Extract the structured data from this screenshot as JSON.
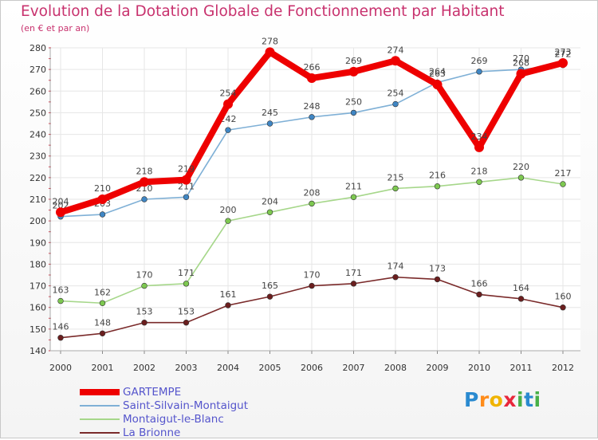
{
  "title": "Evolution de la Dotation Globale de Fonctionnement par Habitant",
  "subtitle": "(en € et par an)",
  "logo": {
    "letters": [
      "P",
      "r",
      "o",
      "x",
      "i",
      "t",
      "i"
    ],
    "colors": [
      "#2a8ad0",
      "#ff8c1a",
      "#f0b400",
      "#e8283c",
      "#48b048",
      "#2a8ad0",
      "#48b048"
    ]
  },
  "chart_data": {
    "type": "line",
    "title": "Evolution de la Dotation Globale de Fonctionnement par Habitant",
    "subtitle": "(en € et par an)",
    "x": [
      "2000",
      "2001",
      "2002",
      "2003",
      "2004",
      "2005",
      "2006",
      "2007",
      "2008",
      "2009",
      "2010",
      "2011",
      "2012"
    ],
    "ylim": [
      140,
      280
    ],
    "yticks": [
      "140",
      "150",
      "160",
      "170",
      "180",
      "190",
      "200",
      "210",
      "220",
      "230",
      "240",
      "250",
      "260",
      "270",
      "280"
    ],
    "grid": true,
    "series": [
      {
        "name": "La Brionne",
        "color": "#7a2a2a",
        "marker": "#6b1e1e",
        "values": [
          146,
          148,
          153,
          153,
          161,
          165,
          170,
          171,
          174,
          173,
          166,
          164,
          160
        ]
      },
      {
        "name": "Montaigut-le-Blanc",
        "color": "#a6d78a",
        "marker": "#7dc850",
        "values": [
          163,
          162,
          170,
          171,
          200,
          204,
          208,
          211,
          215,
          216,
          218,
          220,
          217
        ]
      },
      {
        "name": "Saint-Silvain-Montaigut",
        "color": "#7fb0d6",
        "marker": "#3f86c4",
        "values": [
          202,
          203,
          210,
          211,
          242,
          245,
          248,
          250,
          254,
          264,
          269,
          270,
          272
        ]
      },
      {
        "name": "GARTEMPE",
        "color": "#ee0000",
        "marker": "#ee0000",
        "values": [
          204,
          210,
          218,
          219,
          254,
          278,
          266,
          269,
          274,
          263,
          234,
          268,
          273
        ]
      }
    ],
    "legend": [
      "GARTEMPE",
      "Saint-Silvain-Montaigut",
      "Montaigut-le-Blanc",
      "La Brionne"
    ]
  }
}
